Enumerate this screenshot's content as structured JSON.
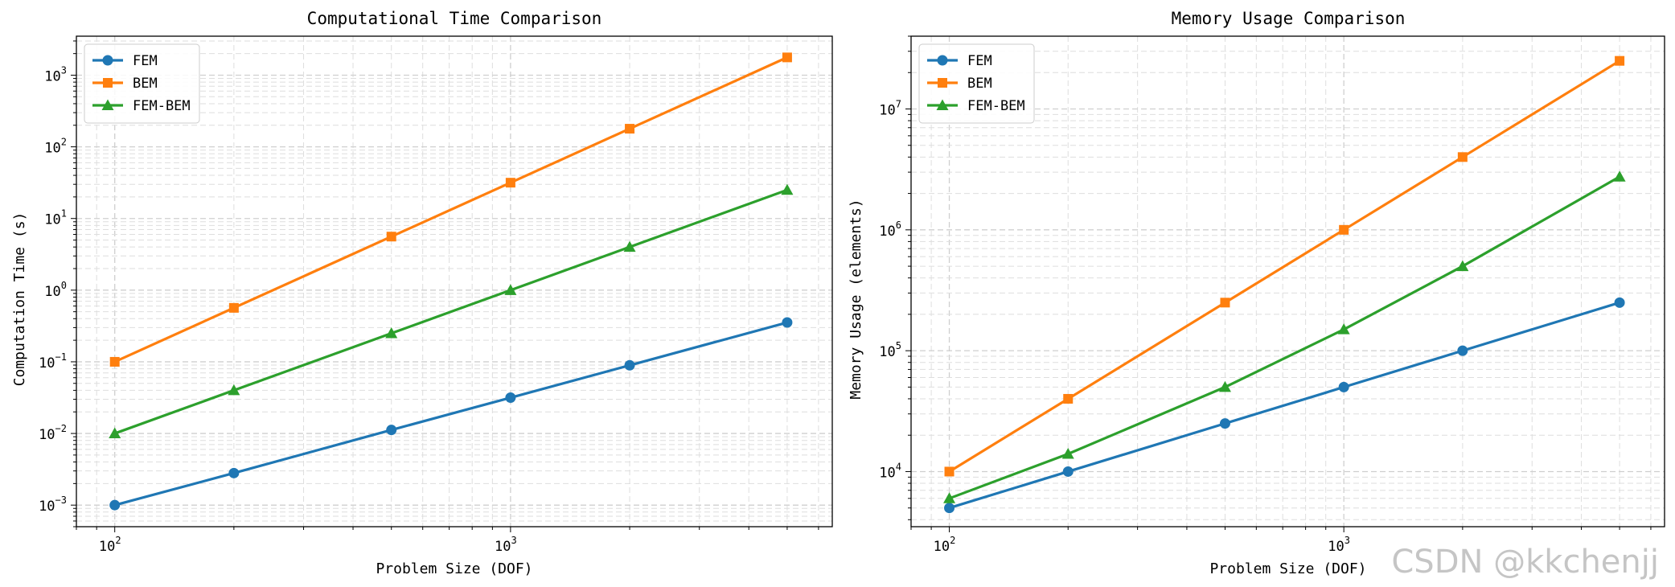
{
  "chart_data": [
    {
      "type": "line",
      "title": "Computational Time Comparison",
      "xlabel": "Problem Size (DOF)",
      "ylabel": "Computation Time (s)",
      "xscale": "log",
      "yscale": "log",
      "xlim": [
        80,
        6500
      ],
      "ylim": [
        0.0005,
        3500
      ],
      "x": [
        100,
        200,
        500,
        1000,
        2000,
        5000
      ],
      "xticks": [
        {
          "value": 100,
          "base": "10",
          "exp": "2"
        },
        {
          "value": 1000,
          "base": "10",
          "exp": "3"
        }
      ],
      "yticks": [
        {
          "value": 0.001,
          "base": "10",
          "exp": "−3"
        },
        {
          "value": 0.01,
          "base": "10",
          "exp": "−2"
        },
        {
          "value": 0.1,
          "base": "10",
          "exp": "−1"
        },
        {
          "value": 1,
          "base": "10",
          "exp": "0"
        },
        {
          "value": 10,
          "base": "10",
          "exp": "1"
        },
        {
          "value": 100,
          "base": "10",
          "exp": "2"
        },
        {
          "value": 1000,
          "base": "10",
          "exp": "3"
        }
      ],
      "grid": true,
      "legend_position": "upper-left",
      "series": [
        {
          "name": "FEM",
          "marker": "circle",
          "color": "#1f77b4",
          "values": [
            0.001,
            0.0028,
            0.0112,
            0.0316,
            0.0894,
            0.354
          ]
        },
        {
          "name": "BEM",
          "marker": "square",
          "color": "#ff7f0e",
          "values": [
            0.1,
            0.566,
            5.59,
            31.6,
            179,
            1770
          ]
        },
        {
          "name": "FEM-BEM",
          "marker": "triangle",
          "color": "#2ca02c",
          "values": [
            0.01,
            0.04,
            0.25,
            1.0,
            4.0,
            25.0
          ]
        }
      ]
    },
    {
      "type": "line",
      "title": "Memory Usage Comparison",
      "xlabel": "Problem Size (DOF)",
      "ylabel": "Memory Usage (elements)",
      "xscale": "log",
      "yscale": "log",
      "xlim": [
        80,
        6500
      ],
      "ylim": [
        3500,
        40000000
      ],
      "x": [
        100,
        200,
        500,
        1000,
        2000,
        5000
      ],
      "xticks": [
        {
          "value": 100,
          "base": "10",
          "exp": "2"
        },
        {
          "value": 1000,
          "base": "10",
          "exp": "3"
        }
      ],
      "yticks": [
        {
          "value": 10000,
          "base": "10",
          "exp": "4"
        },
        {
          "value": 100000,
          "base": "10",
          "exp": "5"
        },
        {
          "value": 1000000,
          "base": "10",
          "exp": "6"
        },
        {
          "value": 10000000,
          "base": "10",
          "exp": "7"
        }
      ],
      "grid": true,
      "legend_position": "upper-left",
      "series": [
        {
          "name": "FEM",
          "marker": "circle",
          "color": "#1f77b4",
          "values": [
            5000,
            10000,
            25000,
            50000,
            100000,
            250000
          ]
        },
        {
          "name": "BEM",
          "marker": "square",
          "color": "#ff7f0e",
          "values": [
            10000,
            40000,
            250000,
            1000000,
            4000000,
            25000000
          ]
        },
        {
          "name": "FEM-BEM",
          "marker": "triangle",
          "color": "#2ca02c",
          "values": [
            6000,
            14000,
            50000,
            150000,
            500000,
            2750000
          ]
        }
      ]
    }
  ],
  "watermark": "CSDN @kkchenjj"
}
